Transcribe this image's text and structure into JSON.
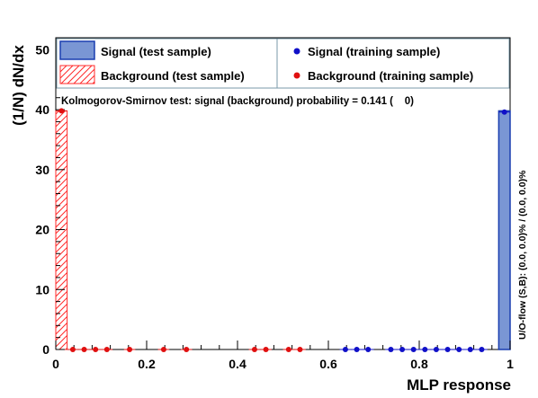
{
  "chart_data": {
    "type": "histogram",
    "xlabel": "MLP response",
    "ylabel": "(1/N) dN/dx",
    "xlim": [
      0,
      1
    ],
    "ylim": [
      0,
      52
    ],
    "x_ticks": [
      "0",
      "0.2",
      "0.4",
      "0.6",
      "0.8",
      "1"
    ],
    "y_ticks": [
      "0",
      "10",
      "20",
      "30",
      "40",
      "50"
    ],
    "ks_text": "Kolmogorov-Smirnov test: signal (background) probability = 0.141 (    0)",
    "overflow_text": "U/O-flow (S,B): (0.0, 0.0)% / (0.0, 0.0)%",
    "bin_width": 0.025,
    "series": [
      {
        "name": "Signal (test sample)",
        "style": "filled-hist",
        "color": "#7a96d4",
        "edge": "#1a3fb0",
        "bins": [
          {
            "x0": 0.975,
            "x1": 1.0,
            "y": 39.8
          }
        ]
      },
      {
        "name": "Background (test sample)",
        "style": "hatched-hist",
        "color": "#ff2a2a",
        "bins": [
          {
            "x0": 0.0,
            "x1": 0.025,
            "y": 39.8
          }
        ]
      },
      {
        "name": "Signal (training sample)",
        "style": "points",
        "color": "#1010c8",
        "points": [
          {
            "x": 0.6375,
            "y": 0
          },
          {
            "x": 0.6625,
            "y": 0
          },
          {
            "x": 0.6875,
            "y": 0
          },
          {
            "x": 0.7375,
            "y": 0
          },
          {
            "x": 0.7625,
            "y": 0
          },
          {
            "x": 0.7875,
            "y": 0
          },
          {
            "x": 0.8125,
            "y": 0
          },
          {
            "x": 0.8375,
            "y": 0
          },
          {
            "x": 0.8625,
            "y": 0
          },
          {
            "x": 0.8875,
            "y": 0
          },
          {
            "x": 0.9125,
            "y": 0
          },
          {
            "x": 0.9375,
            "y": 0
          },
          {
            "x": 0.9875,
            "y": 39.6
          }
        ]
      },
      {
        "name": "Background (training sample)",
        "style": "points",
        "color": "#e01010",
        "points": [
          {
            "x": 0.0125,
            "y": 39.8
          },
          {
            "x": 0.0375,
            "y": 0
          },
          {
            "x": 0.0625,
            "y": 0
          },
          {
            "x": 0.0875,
            "y": 0
          },
          {
            "x": 0.1125,
            "y": 0
          },
          {
            "x": 0.1625,
            "y": 0
          },
          {
            "x": 0.2375,
            "y": 0
          },
          {
            "x": 0.2875,
            "y": 0
          },
          {
            "x": 0.4375,
            "y": 0
          },
          {
            "x": 0.4625,
            "y": 0
          },
          {
            "x": 0.5125,
            "y": 0
          },
          {
            "x": 0.5375,
            "y": 0
          }
        ]
      }
    ]
  }
}
